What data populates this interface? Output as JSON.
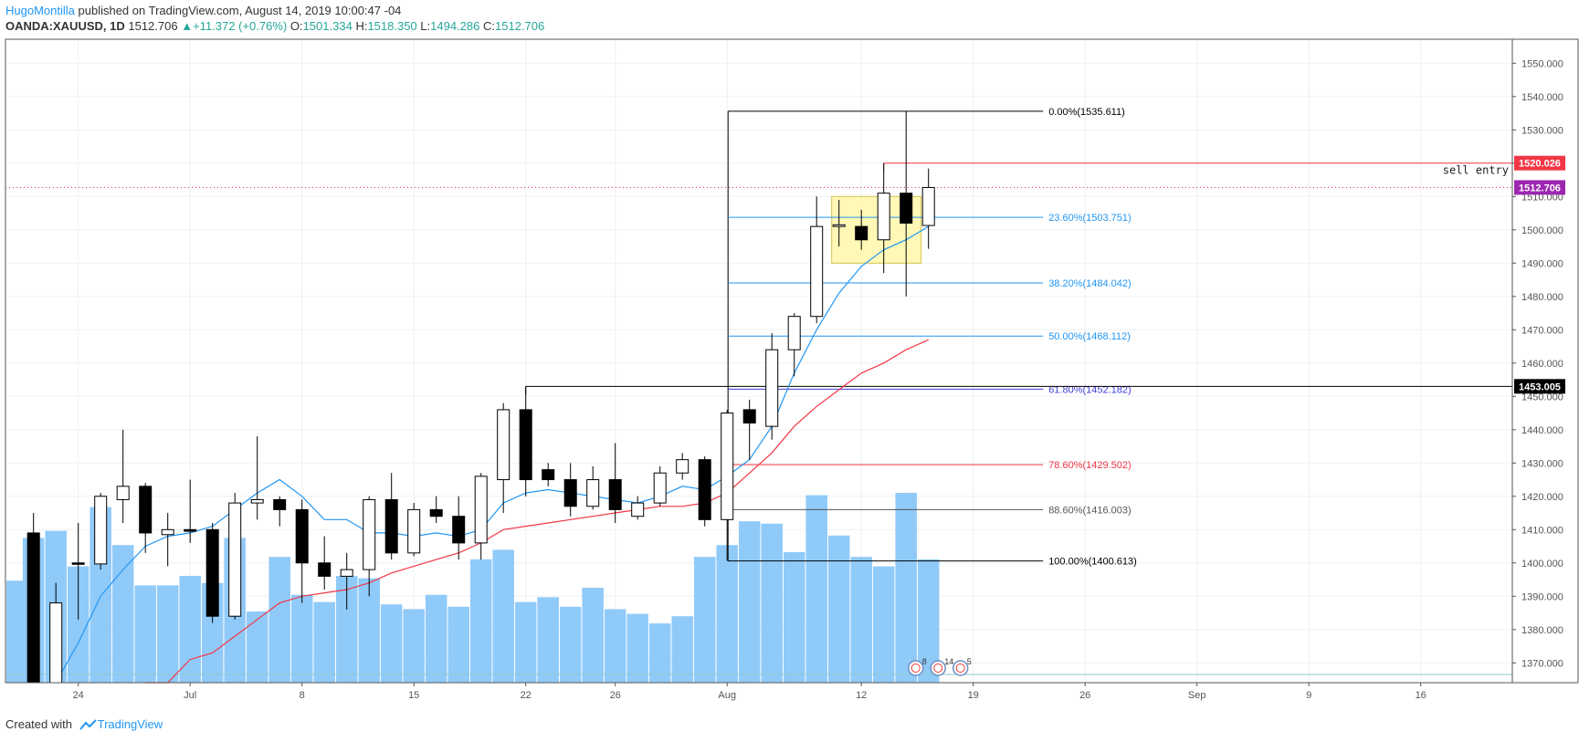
{
  "header": {
    "author": "HugoMontilla",
    "published_text": "published on TradingView.com, August 14, 2019 10:00:47 -04",
    "symbol": "OANDA:XAUUSD, 1D",
    "last": "1512.706",
    "change_arrow": "▲",
    "change": "+11.372 (+0.76%)",
    "o_label": "O:",
    "o_value": "1501.334",
    "h_label": "H:",
    "h_value": "1518.350",
    "l_label": "L:",
    "l_value": "1494.286",
    "c_label": "C:",
    "c_value": "1512.706"
  },
  "footer": {
    "created_with": "Created with",
    "brand": "TradingView",
    "logo_icon": "tradingview-logo-icon"
  },
  "chart_data": {
    "type": "candlestick",
    "price_axis": {
      "ticks": [
        "1370.000",
        "1380.000",
        "1390.000",
        "1400.000",
        "1410.000",
        "1420.000",
        "1430.000",
        "1440.000",
        "1450.000",
        "1460.000",
        "1470.000",
        "1480.000",
        "1490.000",
        "1500.000",
        "1510.000",
        "1520.000",
        "1530.000",
        "1540.000",
        "1550.000"
      ]
    },
    "time_axis": {
      "labels": [
        {
          "slot": 2,
          "text": "24"
        },
        {
          "slot": 7,
          "text": "Jul"
        },
        {
          "slot": 12,
          "text": "8"
        },
        {
          "slot": 17,
          "text": "15"
        },
        {
          "slot": 22,
          "text": "22"
        },
        {
          "slot": 26,
          "text": "26"
        },
        {
          "slot": 31,
          "text": "Aug"
        },
        {
          "slot": 37,
          "text": "12"
        },
        {
          "slot": 42,
          "text": "19"
        },
        {
          "slot": 47,
          "text": "26"
        },
        {
          "slot": 52,
          "text": "Sep"
        },
        {
          "slot": 57,
          "text": "9"
        },
        {
          "slot": 62,
          "text": "16"
        }
      ]
    },
    "candles": [
      {
        "slot": 0,
        "o": 1409.0,
        "h": 1415.0,
        "l": 1352.0,
        "c": 1356.0
      },
      {
        "slot": 1,
        "o": 1356.0,
        "h": 1394.0,
        "l": 1355.0,
        "c": 1388.0
      },
      {
        "slot": 2,
        "o": 1400.0,
        "h": 1412.0,
        "l": 1383.0,
        "c": 1399.7
      },
      {
        "slot": 3,
        "o": 1399.7,
        "h": 1421.0,
        "l": 1398.0,
        "c": 1420.0
      },
      {
        "slot": 4,
        "o": 1419.0,
        "h": 1440.0,
        "l": 1412.0,
        "c": 1423.0
      },
      {
        "slot": 5,
        "o": 1423.0,
        "h": 1424.0,
        "l": 1403.0,
        "c": 1409.0
      },
      {
        "slot": 6,
        "o": 1408.5,
        "h": 1415.0,
        "l": 1399.0,
        "c": 1410.0
      },
      {
        "slot": 7,
        "o": 1410.0,
        "h": 1425.0,
        "l": 1406.0,
        "c": 1409.5
      },
      {
        "slot": 8,
        "o": 1410.0,
        "h": 1412.0,
        "l": 1382.0,
        "c": 1384.0
      },
      {
        "slot": 9,
        "o": 1384.0,
        "h": 1421.0,
        "l": 1383.0,
        "c": 1418.0
      },
      {
        "slot": 10,
        "o": 1418.0,
        "h": 1438.0,
        "l": 1413.0,
        "c": 1419.0
      },
      {
        "slot": 11,
        "o": 1419.0,
        "h": 1420.0,
        "l": 1411.0,
        "c": 1416.0
      },
      {
        "slot": 12,
        "o": 1416.0,
        "h": 1419.0,
        "l": 1388.0,
        "c": 1400.0
      },
      {
        "slot": 13,
        "o": 1400.0,
        "h": 1408.0,
        "l": 1392.0,
        "c": 1396.0
      },
      {
        "slot": 14,
        "o": 1396.0,
        "h": 1403.0,
        "l": 1386.0,
        "c": 1398.0
      },
      {
        "slot": 15,
        "o": 1398.0,
        "h": 1420.0,
        "l": 1390.0,
        "c": 1419.0
      },
      {
        "slot": 16,
        "o": 1419.0,
        "h": 1427.0,
        "l": 1401.0,
        "c": 1403.0
      },
      {
        "slot": 17,
        "o": 1403.0,
        "h": 1418.0,
        "l": 1402.0,
        "c": 1416.0
      },
      {
        "slot": 18,
        "o": 1416.0,
        "h": 1420.0,
        "l": 1412.0,
        "c": 1414.0
      },
      {
        "slot": 19,
        "o": 1414.0,
        "h": 1420.0,
        "l": 1401.0,
        "c": 1406.0
      },
      {
        "slot": 20,
        "o": 1406.0,
        "h": 1427.0,
        "l": 1401.0,
        "c": 1426.0
      },
      {
        "slot": 21,
        "o": 1425.0,
        "h": 1448.0,
        "l": 1415.0,
        "c": 1446.0
      },
      {
        "slot": 22,
        "o": 1446.0,
        "h": 1453.0,
        "l": 1420.0,
        "c": 1425.0
      },
      {
        "slot": 23,
        "o": 1428.0,
        "h": 1430.0,
        "l": 1423.0,
        "c": 1425.0
      },
      {
        "slot": 24,
        "o": 1425.0,
        "h": 1430.0,
        "l": 1414.0,
        "c": 1417.0
      },
      {
        "slot": 25,
        "o": 1417.0,
        "h": 1429.0,
        "l": 1416.0,
        "c": 1425.0
      },
      {
        "slot": 26,
        "o": 1425.0,
        "h": 1436.0,
        "l": 1412.0,
        "c": 1416.0
      },
      {
        "slot": 27,
        "o": 1414.0,
        "h": 1420.0,
        "l": 1413.0,
        "c": 1418.0
      },
      {
        "slot": 28,
        "o": 1418.0,
        "h": 1429.0,
        "l": 1417.0,
        "c": 1427.0
      },
      {
        "slot": 29,
        "o": 1427.0,
        "h": 1433.0,
        "l": 1425.0,
        "c": 1431.0
      },
      {
        "slot": 30,
        "o": 1431.0,
        "h": 1432.0,
        "l": 1411.0,
        "c": 1413.0
      },
      {
        "slot": 31,
        "o": 1413.0,
        "h": 1446.0,
        "l": 1400.6,
        "c": 1445.0
      },
      {
        "slot": 32,
        "o": 1446.0,
        "h": 1449.0,
        "l": 1431.0,
        "c": 1442.0
      },
      {
        "slot": 33,
        "o": 1441.0,
        "h": 1469.0,
        "l": 1437.0,
        "c": 1464.0
      },
      {
        "slot": 34,
        "o": 1464.0,
        "h": 1475.0,
        "l": 1456.0,
        "c": 1474.0
      },
      {
        "slot": 35,
        "o": 1474.0,
        "h": 1510.0,
        "l": 1472.0,
        "c": 1501.0
      },
      {
        "slot": 36,
        "o": 1501.0,
        "h": 1509.0,
        "l": 1495.0,
        "c": 1501.5
      },
      {
        "slot": 37,
        "o": 1501.0,
        "h": 1506.0,
        "l": 1494.0,
        "c": 1497.0
      },
      {
        "slot": 38,
        "o": 1497.0,
        "h": 1520.0,
        "l": 1487.0,
        "c": 1511.0
      },
      {
        "slot": 39,
        "o": 1511.0,
        "h": 1535.6,
        "l": 1480.0,
        "c": 1502.0
      },
      {
        "slot": 40,
        "o": 1501.3,
        "h": 1518.4,
        "l": 1494.3,
        "c": 1512.7
      }
    ],
    "volume": [
      {
        "slot": -1,
        "v": 0.43
      },
      {
        "slot": 0,
        "v": 0.61
      },
      {
        "slot": 1,
        "v": 0.64
      },
      {
        "slot": 2,
        "v": 0.49
      },
      {
        "slot": 3,
        "v": 0.74
      },
      {
        "slot": 4,
        "v": 0.58
      },
      {
        "slot": 5,
        "v": 0.41
      },
      {
        "slot": 6,
        "v": 0.41
      },
      {
        "slot": 7,
        "v": 0.45
      },
      {
        "slot": 8,
        "v": 0.42
      },
      {
        "slot": 9,
        "v": 0.61
      },
      {
        "slot": 10,
        "v": 0.3
      },
      {
        "slot": 11,
        "v": 0.53
      },
      {
        "slot": 12,
        "v": 0.37
      },
      {
        "slot": 13,
        "v": 0.34
      },
      {
        "slot": 14,
        "v": 0.45
      },
      {
        "slot": 15,
        "v": 0.44
      },
      {
        "slot": 16,
        "v": 0.33
      },
      {
        "slot": 17,
        "v": 0.31
      },
      {
        "slot": 18,
        "v": 0.37
      },
      {
        "slot": 19,
        "v": 0.32
      },
      {
        "slot": 20,
        "v": 0.52
      },
      {
        "slot": 21,
        "v": 0.56
      },
      {
        "slot": 22,
        "v": 0.34
      },
      {
        "slot": 23,
        "v": 0.36
      },
      {
        "slot": 24,
        "v": 0.32
      },
      {
        "slot": 25,
        "v": 0.4
      },
      {
        "slot": 26,
        "v": 0.31
      },
      {
        "slot": 27,
        "v": 0.29
      },
      {
        "slot": 28,
        "v": 0.25
      },
      {
        "slot": 29,
        "v": 0.28
      },
      {
        "slot": 30,
        "v": 0.53
      },
      {
        "slot": 31,
        "v": 0.58
      },
      {
        "slot": 32,
        "v": 0.68
      },
      {
        "slot": 33,
        "v": 0.67
      },
      {
        "slot": 34,
        "v": 0.55
      },
      {
        "slot": 35,
        "v": 0.79
      },
      {
        "slot": 36,
        "v": 0.62
      },
      {
        "slot": 37,
        "v": 0.53
      },
      {
        "slot": 38,
        "v": 0.49
      },
      {
        "slot": 39,
        "v": 0.8
      },
      {
        "slot": 40,
        "v": 0.52
      }
    ],
    "ma_fast": [
      [
        1,
        1356
      ],
      [
        2,
        1376
      ],
      [
        3,
        1390
      ],
      [
        4,
        1398
      ],
      [
        5,
        1405
      ],
      [
        6,
        1408
      ],
      [
        7,
        1409
      ],
      [
        8,
        1411
      ],
      [
        9,
        1416
      ],
      [
        10,
        1421
      ],
      [
        11,
        1425
      ],
      [
        12,
        1420
      ],
      [
        13,
        1413
      ],
      [
        14,
        1413
      ],
      [
        15,
        1409
      ],
      [
        16,
        1409
      ],
      [
        17,
        1408
      ],
      [
        18,
        1409
      ],
      [
        19,
        1408
      ],
      [
        20,
        1410
      ],
      [
        21,
        1418
      ],
      [
        22,
        1421
      ],
      [
        23,
        1422
      ],
      [
        24,
        1421
      ],
      [
        25,
        1420
      ],
      [
        26,
        1419
      ],
      [
        27,
        1418
      ],
      [
        28,
        1420
      ],
      [
        29,
        1423
      ],
      [
        30,
        1422
      ],
      [
        31,
        1426
      ],
      [
        32,
        1431
      ],
      [
        33,
        1441
      ],
      [
        34,
        1457
      ],
      [
        35,
        1470
      ],
      [
        36,
        1481
      ],
      [
        37,
        1489
      ],
      [
        38,
        1494
      ],
      [
        39,
        1497
      ],
      [
        40,
        1501
      ]
    ],
    "ma_slow": [
      [
        5,
        1355
      ],
      [
        6,
        1363
      ],
      [
        7,
        1371
      ],
      [
        8,
        1373
      ],
      [
        9,
        1378
      ],
      [
        10,
        1383
      ],
      [
        11,
        1388
      ],
      [
        12,
        1390
      ],
      [
        13,
        1391
      ],
      [
        14,
        1392
      ],
      [
        15,
        1394
      ],
      [
        16,
        1397
      ],
      [
        17,
        1399
      ],
      [
        18,
        1401
      ],
      [
        19,
        1403
      ],
      [
        20,
        1406
      ],
      [
        21,
        1410
      ],
      [
        22,
        1411
      ],
      [
        23,
        1412
      ],
      [
        24,
        1413
      ],
      [
        25,
        1414
      ],
      [
        26,
        1415
      ],
      [
        27,
        1416
      ],
      [
        28,
        1417
      ],
      [
        29,
        1417
      ],
      [
        30,
        1418
      ],
      [
        31,
        1421
      ],
      [
        32,
        1427
      ],
      [
        33,
        1433
      ],
      [
        34,
        1441
      ],
      [
        35,
        1447
      ],
      [
        36,
        1452
      ],
      [
        37,
        1457
      ],
      [
        38,
        1460
      ],
      [
        39,
        1464
      ],
      [
        40,
        1467
      ]
    ],
    "fibonacci": {
      "start_slot": 31,
      "end_slot": 45,
      "levels": [
        {
          "label": "0.00%(1535.611)",
          "price": 1535.611,
          "color": "#000000"
        },
        {
          "label": "23.60%(1503.751)",
          "price": 1503.751,
          "color": "#2196f3"
        },
        {
          "label": "38.20%(1484.042)",
          "price": 1484.042,
          "color": "#2196f3"
        },
        {
          "label": "50.00%(1468.112)",
          "price": 1468.112,
          "color": "#2196f3"
        },
        {
          "label": "61.80%(1452.182)",
          "price": 1452.182,
          "color": "#3f3fd8"
        },
        {
          "label": "78.60%(1429.502)",
          "price": 1429.502,
          "color": "#f23645"
        },
        {
          "label": "88.60%(1416.003)",
          "price": 1416.003,
          "color": "#555555"
        },
        {
          "label": "100.00%(1400.613)",
          "price": 1400.613,
          "color": "#000000"
        }
      ]
    },
    "horizontal_lines": [
      {
        "price": 1453.005,
        "label": "1453.005",
        "color": "#000000",
        "from_slot": 22
      },
      {
        "price": 1520.026,
        "label": "1520.026",
        "color": "#f23645",
        "from_slot": 38,
        "note": "sell entry"
      }
    ],
    "last_price": {
      "price": 1512.706,
      "label": "1512.706",
      "color": "#9c27b0"
    },
    "highlight_box": {
      "from_slot": 36,
      "to_slot": 40,
      "top": 1510,
      "bottom": 1490,
      "color": "#fff59d"
    },
    "event_markers": [
      {
        "slot": 40,
        "count": "8"
      },
      {
        "slot": 41,
        "count": "14"
      },
      {
        "slot": 42,
        "count": "5"
      }
    ],
    "colors": {
      "up_body": "#ffffff",
      "down_body": "#000000",
      "volume": "#90caf9",
      "ma_fast": "#2196f3",
      "ma_slow": "#f23645"
    }
  }
}
